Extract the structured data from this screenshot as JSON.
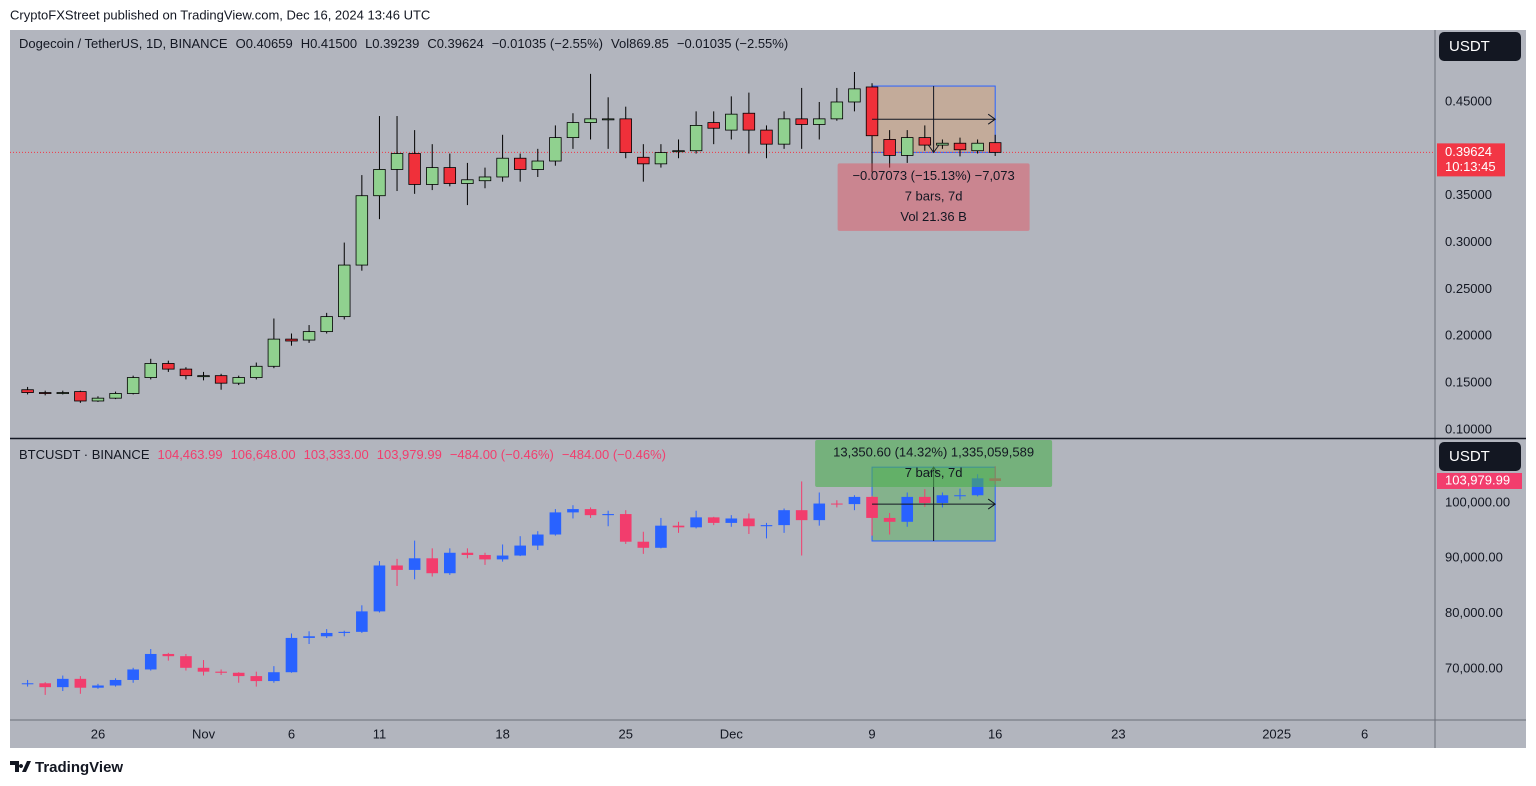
{
  "header": "CryptoFXStreet published on TradingView.com, Dec 16, 2024 13:46 UTC",
  "footer": "TradingView",
  "chart_data": [
    {
      "type": "candlestick",
      "legend": [
        "O0.40659",
        "H0.41500",
        "L0.39239",
        "C0.39624",
        "−0.01035 (−2.55%)",
        "Vol869.85",
        "−0.01035 (−2.55%)"
      ],
      "currency": "USDT",
      "last": {
        "value": 0.39624,
        "label": "0.39624",
        "countdown": "10:13:45"
      },
      "xlim": [
        "2024-10-21",
        "2025-01-10"
      ],
      "ylim": [
        0.0915,
        0.5268
      ],
      "yticks": [
        {
          "value": 0.45,
          "label": "0.45000"
        },
        {
          "value": 0.35,
          "label": "0.35000"
        },
        {
          "value": 0.3,
          "label": "0.30000"
        },
        {
          "value": 0.25,
          "label": "0.25000"
        },
        {
          "value": 0.2,
          "label": "0.20000"
        },
        {
          "value": 0.15,
          "label": "0.15000"
        },
        {
          "value": 0.1,
          "label": "0.10000"
        }
      ],
      "x": [
        "2024-10-22",
        "2024-10-23",
        "2024-10-24",
        "2024-10-25",
        "2024-10-26",
        "2024-10-27",
        "2024-10-28",
        "2024-10-29",
        "2024-10-30",
        "2024-10-31",
        "2024-11-01",
        "2024-11-02",
        "2024-11-03",
        "2024-11-04",
        "2024-11-05",
        "2024-11-06",
        "2024-11-07",
        "2024-11-08",
        "2024-11-09",
        "2024-11-10",
        "2024-11-11",
        "2024-11-12",
        "2024-11-13",
        "2024-11-14",
        "2024-11-15",
        "2024-11-16",
        "2024-11-17",
        "2024-11-18",
        "2024-11-19",
        "2024-11-20",
        "2024-11-21",
        "2024-11-22",
        "2024-11-23",
        "2024-11-24",
        "2024-11-25",
        "2024-11-26",
        "2024-11-27",
        "2024-11-28",
        "2024-11-29",
        "2024-11-30",
        "2024-12-01",
        "2024-12-02",
        "2024-12-03",
        "2024-12-04",
        "2024-12-05",
        "2024-12-06",
        "2024-12-07",
        "2024-12-08",
        "2024-12-09",
        "2024-12-10",
        "2024-12-11",
        "2024-12-12",
        "2024-12-13",
        "2024-12-14",
        "2024-12-15",
        "2024-12-16"
      ],
      "series": [
        {
          "name": "Dogecoin / TetherUS, 1D, BINANCE",
          "up_color": "#90d18f",
          "down_color": "#f0303a",
          "outline": "#000000",
          "open": [
            0.143,
            0.14,
            0.139,
            0.141,
            0.131,
            0.134,
            0.139,
            0.156,
            0.171,
            0.165,
            0.158,
            0.158,
            0.15,
            0.156,
            0.168,
            0.197,
            0.196,
            0.205,
            0.221,
            0.276,
            0.35,
            0.378,
            0.395,
            0.362,
            0.38,
            0.363,
            0.366,
            0.37,
            0.39,
            0.378,
            0.387,
            0.412,
            0.428,
            0.432,
            0.432,
            0.391,
            0.384,
            0.398,
            0.398,
            0.428,
            0.42,
            0.438,
            0.42,
            0.405,
            0.432,
            0.426,
            0.432,
            0.45,
            0.466,
            0.41,
            0.393,
            0.412,
            0.404,
            0.406,
            0.398,
            0.40659
          ],
          "high": [
            0.146,
            0.142,
            0.142,
            0.142,
            0.136,
            0.141,
            0.158,
            0.176,
            0.174,
            0.167,
            0.162,
            0.16,
            0.158,
            0.172,
            0.219,
            0.203,
            0.212,
            0.225,
            0.3,
            0.372,
            0.435,
            0.435,
            0.42,
            0.405,
            0.395,
            0.385,
            0.38,
            0.415,
            0.395,
            0.4,
            0.425,
            0.438,
            0.48,
            0.455,
            0.445,
            0.405,
            0.405,
            0.41,
            0.44,
            0.44,
            0.456,
            0.46,
            0.425,
            0.44,
            0.465,
            0.45,
            0.465,
            0.482,
            0.47,
            0.42,
            0.42,
            0.425,
            0.41,
            0.412,
            0.41,
            0.415
          ],
          "low": [
            0.138,
            0.137,
            0.138,
            0.129,
            0.13,
            0.133,
            0.138,
            0.154,
            0.162,
            0.154,
            0.153,
            0.143,
            0.148,
            0.154,
            0.166,
            0.19,
            0.193,
            0.203,
            0.218,
            0.27,
            0.325,
            0.355,
            0.352,
            0.356,
            0.36,
            0.34,
            0.358,
            0.365,
            0.365,
            0.37,
            0.382,
            0.4,
            0.41,
            0.4,
            0.39,
            0.365,
            0.38,
            0.39,
            0.395,
            0.405,
            0.41,
            0.395,
            0.39,
            0.4,
            0.4,
            0.41,
            0.43,
            0.44,
            0.375,
            0.38,
            0.385,
            0.398,
            0.4,
            0.392,
            0.395,
            0.39239
          ],
          "close": [
            0.14,
            0.139,
            0.14,
            0.131,
            0.134,
            0.139,
            0.156,
            0.171,
            0.165,
            0.158,
            0.158,
            0.15,
            0.156,
            0.168,
            0.197,
            0.195,
            0.205,
            0.221,
            0.276,
            0.35,
            0.378,
            0.395,
            0.362,
            0.38,
            0.363,
            0.367,
            0.37,
            0.39,
            0.378,
            0.387,
            0.412,
            0.428,
            0.432,
            0.432,
            0.396,
            0.384,
            0.396,
            0.398,
            0.425,
            0.422,
            0.437,
            0.42,
            0.405,
            0.432,
            0.426,
            0.432,
            0.45,
            0.464,
            0.414,
            0.393,
            0.412,
            0.404,
            0.406,
            0.399,
            0.406,
            0.39624
          ]
        }
      ],
      "measure": {
        "from": "2024-12-09",
        "to": "2024-12-16",
        "start": 0.467,
        "end": 0.39624,
        "fill": "rgba(214,160,110,0.45)",
        "label_fill": "rgba(242,54,69,0.38)",
        "labels": [
          "−0.07073 (−15.13%) −7,073",
          "7 bars, 7d",
          "Vol 21.36 B"
        ]
      }
    },
    {
      "type": "candlestick",
      "legend": [
        "104,463.99",
        "106,648.00",
        "103,333.00",
        "103,979.99",
        "−484.00 (−0.46%)",
        "−484.00 (−0.46%)"
      ],
      "currency": "USDT",
      "last": {
        "value": 103979.99,
        "label": "103,979.99"
      },
      "xlim": [
        "2024-10-21",
        "2025-01-10"
      ],
      "ylim": [
        60760,
        111390
      ],
      "yticks": [
        {
          "value": 100000,
          "label": "100,000.00"
        },
        {
          "value": 90000,
          "label": "90,000.00"
        },
        {
          "value": 80000,
          "label": "80,000.00"
        },
        {
          "value": 70000,
          "label": "70,000.00"
        }
      ],
      "xticks": [
        {
          "value": "2024-10-26",
          "label": "26"
        },
        {
          "value": "2024-11-01",
          "label": "Nov"
        },
        {
          "value": "2024-11-06",
          "label": "6"
        },
        {
          "value": "2024-11-11",
          "label": "11"
        },
        {
          "value": "2024-11-18",
          "label": "18"
        },
        {
          "value": "2024-11-25",
          "label": "25"
        },
        {
          "value": "2024-12-01",
          "label": "Dec"
        },
        {
          "value": "2024-12-09",
          "label": "9"
        },
        {
          "value": "2024-12-16",
          "label": "16"
        },
        {
          "value": "2024-12-23",
          "label": "23"
        },
        {
          "value": "2025-01-01",
          "label": "2025"
        },
        {
          "value": "2025-01-06",
          "label": "6"
        }
      ],
      "x": [
        "2024-10-22",
        "2024-10-23",
        "2024-10-24",
        "2024-10-25",
        "2024-10-26",
        "2024-10-27",
        "2024-10-28",
        "2024-10-29",
        "2024-10-30",
        "2024-10-31",
        "2024-11-01",
        "2024-11-02",
        "2024-11-03",
        "2024-11-04",
        "2024-11-05",
        "2024-11-06",
        "2024-11-07",
        "2024-11-08",
        "2024-11-09",
        "2024-11-10",
        "2024-11-11",
        "2024-11-12",
        "2024-11-13",
        "2024-11-14",
        "2024-11-15",
        "2024-11-16",
        "2024-11-17",
        "2024-11-18",
        "2024-11-19",
        "2024-11-20",
        "2024-11-21",
        "2024-11-22",
        "2024-11-23",
        "2024-11-24",
        "2024-11-25",
        "2024-11-26",
        "2024-11-27",
        "2024-11-28",
        "2024-11-29",
        "2024-11-30",
        "2024-12-01",
        "2024-12-02",
        "2024-12-03",
        "2024-12-04",
        "2024-12-05",
        "2024-12-06",
        "2024-12-07",
        "2024-12-08",
        "2024-12-09",
        "2024-12-10",
        "2024-12-11",
        "2024-12-12",
        "2024-12-13",
        "2024-12-14",
        "2024-12-15",
        "2024-12-16"
      ],
      "series": [
        {
          "name": "BTCUSDT · BINANCE",
          "up_color": "#2962ff",
          "down_color": "#f23d6d",
          "open": [
            67400,
            67400,
            66700,
            68200,
            66600,
            67000,
            68000,
            69900,
            72700,
            72300,
            70200,
            69500,
            69300,
            68700,
            67800,
            69400,
            75600,
            75900,
            76500,
            76700,
            80400,
            88700,
            87900,
            90000,
            87300,
            91000,
            90600,
            89800,
            90500,
            92300,
            94300,
            98300,
            98900,
            97800,
            98000,
            93000,
            91900,
            95900,
            95600,
            97400,
            96400,
            97200,
            95800,
            96000,
            98700,
            96900,
            99900,
            99800,
            101100,
            97300,
            96600,
            101100,
            100000,
            101400,
            101400,
            104463.99
          ],
          "high": [
            68000,
            67600,
            68800,
            68700,
            67300,
            68300,
            70200,
            73600,
            72900,
            72700,
            71600,
            69900,
            69400,
            69500,
            70500,
            76400,
            76800,
            77200,
            76900,
            81500,
            89500,
            89900,
            93200,
            91800,
            91800,
            91800,
            91000,
            92500,
            94000,
            94900,
            98900,
            99600,
            99200,
            98600,
            98700,
            94800,
            97300,
            96600,
            98600,
            97500,
            97800,
            98100,
            96400,
            99000,
            103900,
            101900,
            100500,
            101400,
            101300,
            98200,
            101900,
            102500,
            101900,
            102600,
            105200,
            106648
          ],
          "low": [
            66800,
            65300,
            66000,
            65500,
            66400,
            66800,
            67500,
            69700,
            71500,
            69700,
            68800,
            68900,
            67500,
            66800,
            67500,
            69300,
            74500,
            75600,
            75900,
            76500,
            80200,
            85000,
            86200,
            86700,
            87000,
            90000,
            88800,
            89400,
            90400,
            91500,
            94100,
            97200,
            97300,
            95800,
            92600,
            90800,
            91800,
            94600,
            95400,
            96000,
            95700,
            94400,
            93600,
            94600,
            90500,
            95900,
            99200,
            98700,
            94100,
            94300,
            95700,
            99300,
            99200,
            100600,
            101200,
            103333
          ],
          "close": [
            67400,
            66700,
            68200,
            66600,
            67000,
            68000,
            69900,
            72700,
            72300,
            70200,
            69500,
            69300,
            68700,
            67800,
            69400,
            75600,
            75900,
            76500,
            76700,
            80400,
            88700,
            87900,
            90000,
            87300,
            91000,
            90600,
            89800,
            90500,
            92300,
            94300,
            98300,
            98900,
            97800,
            98000,
            93000,
            91900,
            95900,
            95600,
            97400,
            96400,
            97200,
            95800,
            96000,
            98700,
            96900,
            99900,
            99800,
            101100,
            97300,
            96600,
            101100,
            100000,
            101400,
            101400,
            104463.99,
            103979.99
          ]
        }
      ],
      "measure": {
        "from": "2024-12-09",
        "to": "2024-12-16",
        "start": 93130,
        "end": 106480,
        "fill": "rgba(76,175,80,0.45)",
        "label_fill": "rgba(76,175,80,0.6)",
        "labels": [
          "13,350.60 (14.32%) 1,335,059,589",
          "7 bars, 7d"
        ]
      }
    }
  ]
}
